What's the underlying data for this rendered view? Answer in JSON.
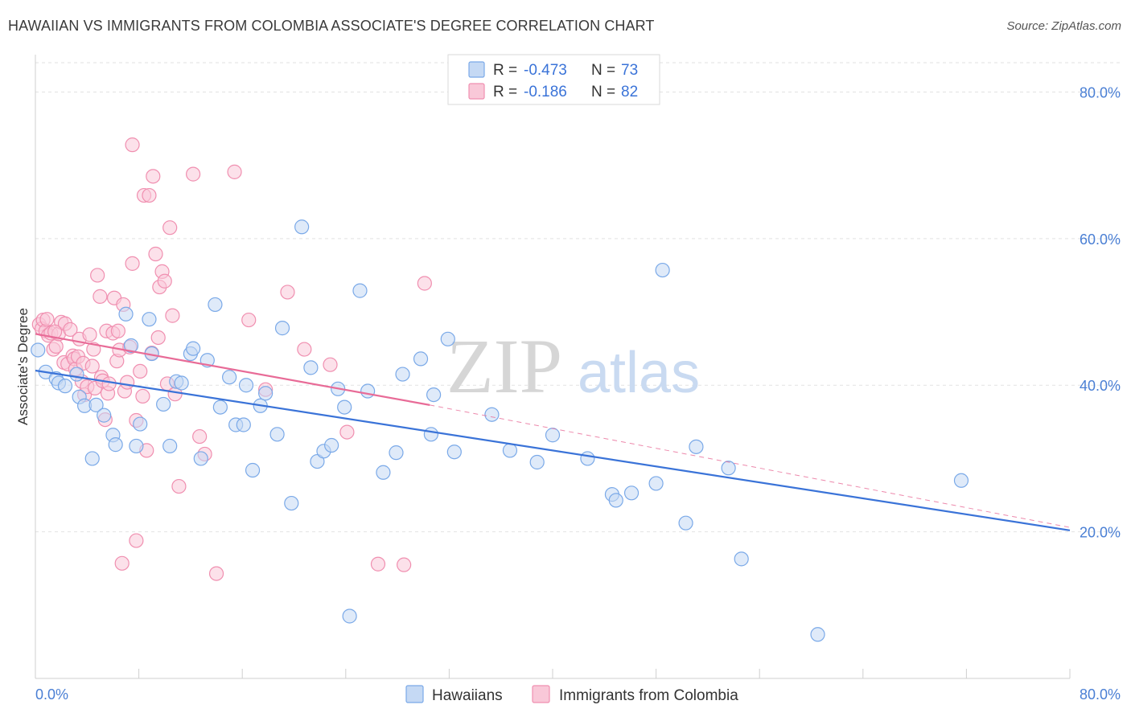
{
  "title": "HAWAIIAN VS IMMIGRANTS FROM COLOMBIA ASSOCIATE'S DEGREE CORRELATION CHART",
  "source": "Source: ZipAtlas.com",
  "watermark": {
    "zip": "ZIP",
    "atlas": "atlas"
  },
  "legend_top": {
    "items": [
      {
        "r_label": "R =",
        "r_value": "-0.473",
        "n_label": "N =",
        "n_value": "73",
        "color": "#a8c7f0"
      },
      {
        "r_label": "R =",
        "r_value": "-0.186",
        "n_label": "N =",
        "n_value": "82",
        "color": "#f6b6cb"
      }
    ]
  },
  "legend_bottom": [
    "Hawaiians",
    "Immigrants from Colombia"
  ],
  "chart_data": {
    "type": "scatter",
    "title": "HAWAIIAN VS IMMIGRANTS FROM COLOMBIA ASSOCIATE'S DEGREE CORRELATION CHART",
    "xlabel": "",
    "ylabel": "Associate's Degree",
    "xlim": [
      0,
      80
    ],
    "ylim": [
      0,
      84
    ],
    "x_tick_labels": [
      "0.0%",
      "80.0%"
    ],
    "y_ticks": [
      20,
      40,
      60,
      80
    ],
    "y_tick_labels": [
      "20.0%",
      "40.0%",
      "60.0%",
      "80.0%"
    ],
    "grid": true,
    "legend_position": "top-center",
    "series": [
      {
        "name": "Hawaiians",
        "color": "#7aa9e8",
        "fill": "#c5d9f4",
        "trend": {
          "x": [
            0,
            80
          ],
          "y": [
            42.0,
            20.2
          ],
          "color": "#3a73d8"
        },
        "points": [
          [
            0.2,
            44.8
          ],
          [
            0.8,
            41.8
          ],
          [
            1.6,
            40.9
          ],
          [
            1.8,
            40.3
          ],
          [
            2.3,
            39.9
          ],
          [
            3.2,
            41.5
          ],
          [
            3.4,
            38.4
          ],
          [
            3.8,
            37.2
          ],
          [
            4.7,
            37.3
          ],
          [
            5.3,
            35.9
          ],
          [
            6.0,
            33.2
          ],
          [
            4.4,
            30.0
          ],
          [
            6.2,
            31.9
          ],
          [
            7.4,
            45.4
          ],
          [
            7.0,
            49.7
          ],
          [
            8.1,
            34.7
          ],
          [
            7.8,
            31.7
          ],
          [
            9.0,
            44.3
          ],
          [
            8.8,
            49.0
          ],
          [
            9.9,
            37.4
          ],
          [
            10.4,
            31.7
          ],
          [
            10.9,
            40.5
          ],
          [
            11.3,
            40.3
          ],
          [
            12.0,
            44.3
          ],
          [
            12.2,
            45.0
          ],
          [
            12.8,
            30.0
          ],
          [
            13.3,
            43.4
          ],
          [
            13.9,
            51.0
          ],
          [
            14.3,
            37.0
          ],
          [
            15.0,
            41.1
          ],
          [
            15.5,
            34.6
          ],
          [
            16.1,
            34.6
          ],
          [
            16.3,
            40.0
          ],
          [
            16.8,
            28.4
          ],
          [
            17.4,
            37.2
          ],
          [
            17.8,
            38.9
          ],
          [
            18.7,
            33.3
          ],
          [
            19.1,
            47.8
          ],
          [
            19.8,
            23.9
          ],
          [
            20.6,
            61.6
          ],
          [
            21.3,
            42.4
          ],
          [
            21.8,
            29.6
          ],
          [
            22.3,
            31.0
          ],
          [
            22.9,
            31.8
          ],
          [
            23.4,
            39.5
          ],
          [
            23.9,
            37.0
          ],
          [
            24.3,
            8.5
          ],
          [
            25.1,
            52.9
          ],
          [
            25.7,
            39.2
          ],
          [
            26.9,
            28.1
          ],
          [
            27.9,
            30.8
          ],
          [
            28.4,
            41.5
          ],
          [
            29.8,
            43.6
          ],
          [
            30.6,
            33.3
          ],
          [
            30.8,
            38.7
          ],
          [
            31.9,
            46.3
          ],
          [
            32.4,
            30.9
          ],
          [
            35.3,
            36.0
          ],
          [
            36.7,
            31.1
          ],
          [
            38.8,
            29.5
          ],
          [
            40.0,
            33.2
          ],
          [
            42.7,
            30.0
          ],
          [
            44.6,
            25.1
          ],
          [
            44.9,
            24.3
          ],
          [
            46.1,
            25.3
          ],
          [
            48.0,
            26.6
          ],
          [
            48.5,
            55.7
          ],
          [
            50.3,
            21.2
          ],
          [
            51.1,
            31.6
          ],
          [
            53.6,
            28.7
          ],
          [
            54.6,
            16.3
          ],
          [
            60.5,
            6.0
          ],
          [
            71.6,
            27.0
          ]
        ]
      },
      {
        "name": "Immigrants from Colombia",
        "color": "#f08fb0",
        "fill": "#f9c8d8",
        "trend": {
          "x": [
            0,
            30.5
          ],
          "y": [
            47.0,
            37.3
          ],
          "color": "#e86b97"
        },
        "trend_extension": {
          "x": [
            30.5,
            80
          ],
          "y": [
            37.3,
            20.6
          ]
        },
        "points": [
          [
            0.3,
            48.3
          ],
          [
            0.5,
            47.7
          ],
          [
            0.6,
            48.9
          ],
          [
            0.8,
            47.4
          ],
          [
            1.0,
            46.8
          ],
          [
            1.2,
            47.1
          ],
          [
            1.4,
            44.9
          ],
          [
            1.6,
            45.3
          ],
          [
            1.8,
            47.0
          ],
          [
            2.0,
            48.6
          ],
          [
            2.2,
            43.1
          ],
          [
            2.3,
            48.4
          ],
          [
            2.5,
            42.9
          ],
          [
            2.7,
            47.6
          ],
          [
            2.9,
            44.0
          ],
          [
            3.0,
            43.6
          ],
          [
            3.1,
            42.2
          ],
          [
            3.3,
            43.9
          ],
          [
            3.4,
            46.3
          ],
          [
            3.6,
            40.5
          ],
          [
            3.7,
            43.0
          ],
          [
            3.8,
            38.7
          ],
          [
            4.0,
            39.8
          ],
          [
            4.2,
            46.9
          ],
          [
            4.4,
            42.6
          ],
          [
            4.5,
            44.9
          ],
          [
            4.6,
            39.6
          ],
          [
            4.8,
            55.0
          ],
          [
            5.0,
            52.1
          ],
          [
            5.1,
            41.1
          ],
          [
            5.2,
            40.6
          ],
          [
            5.4,
            35.3
          ],
          [
            5.5,
            47.4
          ],
          [
            5.6,
            38.9
          ],
          [
            5.7,
            40.2
          ],
          [
            6.0,
            47.1
          ],
          [
            6.1,
            51.9
          ],
          [
            6.3,
            43.3
          ],
          [
            6.4,
            47.4
          ],
          [
            6.5,
            44.8
          ],
          [
            6.7,
            15.7
          ],
          [
            6.8,
            51.0
          ],
          [
            6.9,
            39.2
          ],
          [
            7.1,
            40.4
          ],
          [
            7.3,
            45.2
          ],
          [
            7.5,
            56.6
          ],
          [
            7.5,
            72.8
          ],
          [
            7.8,
            35.2
          ],
          [
            7.8,
            18.8
          ],
          [
            8.1,
            41.9
          ],
          [
            8.3,
            38.5
          ],
          [
            8.4,
            65.9
          ],
          [
            8.6,
            31.1
          ],
          [
            8.8,
            65.9
          ],
          [
            9.0,
            44.4
          ],
          [
            9.1,
            68.5
          ],
          [
            9.3,
            57.9
          ],
          [
            9.5,
            46.5
          ],
          [
            9.6,
            53.4
          ],
          [
            9.8,
            55.5
          ],
          [
            10.0,
            54.2
          ],
          [
            10.2,
            40.2
          ],
          [
            10.4,
            61.5
          ],
          [
            10.6,
            49.5
          ],
          [
            10.8,
            38.8
          ],
          [
            11.1,
            26.2
          ],
          [
            12.2,
            68.8
          ],
          [
            12.7,
            33.0
          ],
          [
            13.1,
            30.6
          ],
          [
            14.0,
            14.3
          ],
          [
            15.4,
            69.1
          ],
          [
            16.5,
            48.9
          ],
          [
            17.8,
            39.4
          ],
          [
            19.5,
            52.7
          ],
          [
            20.8,
            44.9
          ],
          [
            22.8,
            42.8
          ],
          [
            24.1,
            33.6
          ],
          [
            26.5,
            15.6
          ],
          [
            28.5,
            15.5
          ],
          [
            30.1,
            53.9
          ],
          [
            0.9,
            49.0
          ],
          [
            1.5,
            47.3
          ]
        ]
      }
    ]
  }
}
